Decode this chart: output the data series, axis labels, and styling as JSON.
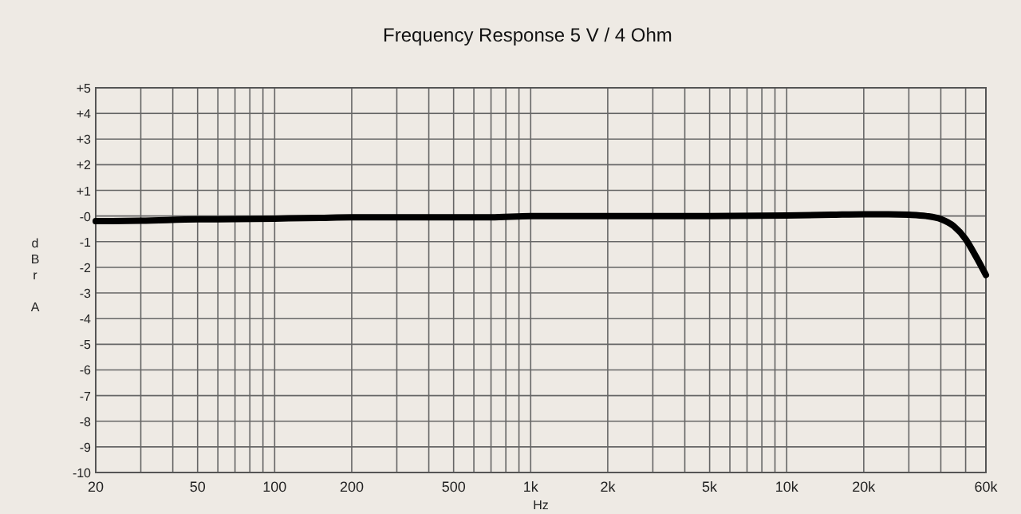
{
  "chart_data": {
    "type": "line",
    "title": "Frequency Response     5 V / 4 Ohm",
    "xlabel": "Hz",
    "ylabel": "dBrA",
    "log": "x",
    "grid": true,
    "line_style": "solid",
    "marker": "none",
    "x": [
      20,
      30,
      50,
      70,
      100,
      150,
      200,
      300,
      500,
      700,
      1000,
      2000,
      5000,
      10000,
      15000,
      20000,
      25000,
      30000,
      35000,
      40000,
      45000,
      50000,
      55000,
      60000
    ],
    "series": [
      {
        "color": "#000000",
        "values": [
          -0.2,
          -0.18,
          -0.13,
          -0.12,
          -0.1,
          -0.07,
          -0.05,
          -0.05,
          -0.05,
          -0.05,
          0,
          0,
          0,
          0.02,
          0.05,
          0.07,
          0.07,
          0.05,
          0,
          -0.12,
          -0.4,
          -0.9,
          -1.6,
          -2.3
        ]
      }
    ],
    "xlim": [
      20,
      60000
    ],
    "ylim": [
      -10,
      5
    ],
    "xticks": [
      20,
      {
        "value": 30,
        "label": null
      },
      {
        "value": 40,
        "label": null
      },
      50,
      {
        "value": 60,
        "label": null
      },
      {
        "value": 70,
        "label": null
      },
      {
        "value": 80,
        "label": null
      },
      {
        "value": 90,
        "label": null
      },
      100,
      200,
      {
        "value": 300,
        "label": null
      },
      {
        "value": 400,
        "label": null
      },
      500,
      {
        "value": 600,
        "label": null
      },
      {
        "value": 700,
        "label": null
      },
      {
        "value": 800,
        "label": null
      },
      {
        "value": 900,
        "label": null
      },
      {
        "value": 1000,
        "label": "1k"
      },
      {
        "value": 2000,
        "label": "2k"
      },
      {
        "value": 3000,
        "label": null
      },
      {
        "value": 4000,
        "label": null
      },
      {
        "value": 5000,
        "label": "5k"
      },
      {
        "value": 6000,
        "label": null
      },
      {
        "value": 7000,
        "label": null
      },
      {
        "value": 8000,
        "label": null
      },
      {
        "value": 9000,
        "label": null
      },
      {
        "value": 10000,
        "label": "10k"
      },
      {
        "value": 20000,
        "label": "20k"
      },
      {
        "value": 30000,
        "label": null
      },
      {
        "value": 40000,
        "label": null
      },
      {
        "value": 50000,
        "label": null
      },
      {
        "value": 60000,
        "label": "60k"
      }
    ],
    "yticks": [
      {
        "value": 5,
        "label": "+5"
      },
      {
        "value": 4,
        "label": "+4"
      },
      {
        "value": 3,
        "label": "+3"
      },
      {
        "value": 2,
        "label": "+2"
      },
      {
        "value": 1,
        "label": "+1"
      },
      {
        "value": 0,
        "label": "-0"
      },
      -1,
      -2,
      -3,
      -4,
      -5,
      -6,
      -7,
      -8,
      -9,
      -10
    ]
  }
}
